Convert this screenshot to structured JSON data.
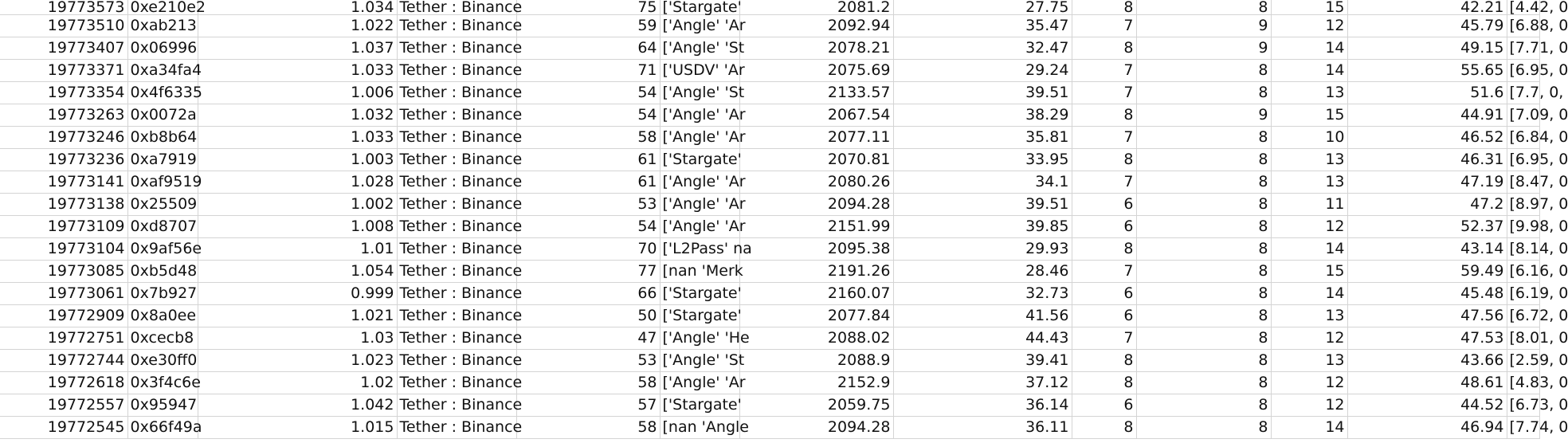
{
  "sheet": {
    "columns": [
      {
        "key": "block",
        "align": "num"
      },
      {
        "key": "hash",
        "align": "txt"
      },
      {
        "key": "ratio",
        "align": "num"
      },
      {
        "key": "pair",
        "align": "txt"
      },
      {
        "key": "count",
        "align": "num"
      },
      {
        "key": "protocols",
        "align": "txt"
      },
      {
        "key": "price",
        "align": "num"
      },
      {
        "key": "metric",
        "align": "num"
      },
      {
        "key": "a",
        "align": "num"
      },
      {
        "key": "b",
        "align": "num"
      },
      {
        "key": "c",
        "align": "num"
      },
      {
        "key": "score",
        "align": "num"
      },
      {
        "key": "vector",
        "align": "txt"
      }
    ],
    "rows": [
      [
        "19773573",
        "0xe210e2",
        "1.034",
        "Tether : Binance",
        "75",
        "['Stargate'",
        "2081.2",
        "27.75",
        "8",
        "8",
        "15",
        "42.21",
        "[4.42, 0"
      ],
      [
        "19773510",
        "0xab213",
        "1.022",
        "Tether : Binance",
        "59",
        "['Angle' 'Ar",
        "2092.94",
        "35.47",
        "7",
        "9",
        "12",
        "45.79",
        "[6.88, 0"
      ],
      [
        "19773407",
        "0x06996",
        "1.037",
        "Tether : Binance",
        "64",
        "['Angle' 'St",
        "2078.21",
        "32.47",
        "8",
        "9",
        "14",
        "49.15",
        "[7.71, 0"
      ],
      [
        "19773371",
        "0xa34fa4",
        "1.033",
        "Tether : Binance",
        "71",
        "['USDV' 'Ar",
        "2075.69",
        "29.24",
        "7",
        "8",
        "14",
        "55.65",
        "[6.95, 0"
      ],
      [
        "19773354",
        "0x4f6335",
        "1.006",
        "Tether : Binance",
        "54",
        "['Angle' 'St",
        "2133.57",
        "39.51",
        "7",
        "8",
        "13",
        "51.6",
        "[7.7, 0,"
      ],
      [
        "19773263",
        "0x0072a",
        "1.032",
        "Tether : Binance",
        "54",
        "['Angle' 'Ar",
        "2067.54",
        "38.29",
        "8",
        "9",
        "15",
        "44.91",
        "[7.09, 0"
      ],
      [
        "19773246",
        "0xb8b64",
        "1.033",
        "Tether : Binance",
        "58",
        "['Angle' 'Ar",
        "2077.11",
        "35.81",
        "7",
        "8",
        "10",
        "46.52",
        "[6.84, 0"
      ],
      [
        "19773236",
        "0xa7919",
        "1.003",
        "Tether : Binance",
        "61",
        "['Stargate'",
        "2070.81",
        "33.95",
        "8",
        "8",
        "13",
        "46.31",
        "[6.95, 0"
      ],
      [
        "19773141",
        "0xaf9519",
        "1.028",
        "Tether : Binance",
        "61",
        "['Angle' 'Ar",
        "2080.26",
        "34.1",
        "7",
        "8",
        "13",
        "47.19",
        "[8.47, 0"
      ],
      [
        "19773138",
        "0x25509",
        "1.002",
        "Tether : Binance",
        "53",
        "['Angle' 'Ar",
        "2094.28",
        "39.51",
        "6",
        "8",
        "11",
        "47.2",
        "[8.97, 0"
      ],
      [
        "19773109",
        "0xd8707",
        "1.008",
        "Tether : Binance",
        "54",
        "['Angle' 'Ar",
        "2151.99",
        "39.85",
        "6",
        "8",
        "12",
        "52.37",
        "[9.98, 0"
      ],
      [
        "19773104",
        "0x9af56e",
        "1.01",
        "Tether : Binance",
        "70",
        "['L2Pass' na",
        "2095.38",
        "29.93",
        "8",
        "8",
        "14",
        "43.14",
        "[8.14, 0"
      ],
      [
        "19773085",
        "0xb5d48",
        "1.054",
        "Tether : Binance",
        "77",
        "[nan 'Merk",
        "2191.26",
        "28.46",
        "7",
        "8",
        "15",
        "59.49",
        "[6.16, 0"
      ],
      [
        "19773061",
        "0x7b927",
        "0.999",
        "Tether : Binance",
        "66",
        "['Stargate'",
        "2160.07",
        "32.73",
        "6",
        "8",
        "14",
        "45.48",
        "[6.19, 0"
      ],
      [
        "19772909",
        "0x8a0ee",
        "1.021",
        "Tether : Binance",
        "50",
        "['Stargate'",
        "2077.84",
        "41.56",
        "6",
        "8",
        "13",
        "47.56",
        "[6.72, 0"
      ],
      [
        "19772751",
        "0xcecb8",
        "1.03",
        "Tether : Binance",
        "47",
        "['Angle' 'He",
        "2088.02",
        "44.43",
        "7",
        "8",
        "12",
        "47.53",
        "[8.01, 0"
      ],
      [
        "19772744",
        "0xe30ff0",
        "1.023",
        "Tether : Binance",
        "53",
        "['Angle' 'St",
        "2088.9",
        "39.41",
        "8",
        "8",
        "13",
        "43.66",
        "[2.59, 0"
      ],
      [
        "19772618",
        "0x3f4c6e",
        "1.02",
        "Tether : Binance",
        "58",
        "['Angle' 'Ar",
        "2152.9",
        "37.12",
        "8",
        "8",
        "12",
        "48.61",
        "[4.83, 0"
      ],
      [
        "19772557",
        "0x95947",
        "1.042",
        "Tether : Binance",
        "57",
        "['Stargate'",
        "2059.75",
        "36.14",
        "6",
        "8",
        "12",
        "44.52",
        "[6.73, 0"
      ],
      [
        "19772545",
        "0x66f49a",
        "1.015",
        "Tether : Binance",
        "58",
        "[nan 'Angle",
        "2094.28",
        "36.11",
        "8",
        "8",
        "14",
        "46.94",
        "[7.74, 0"
      ]
    ]
  }
}
